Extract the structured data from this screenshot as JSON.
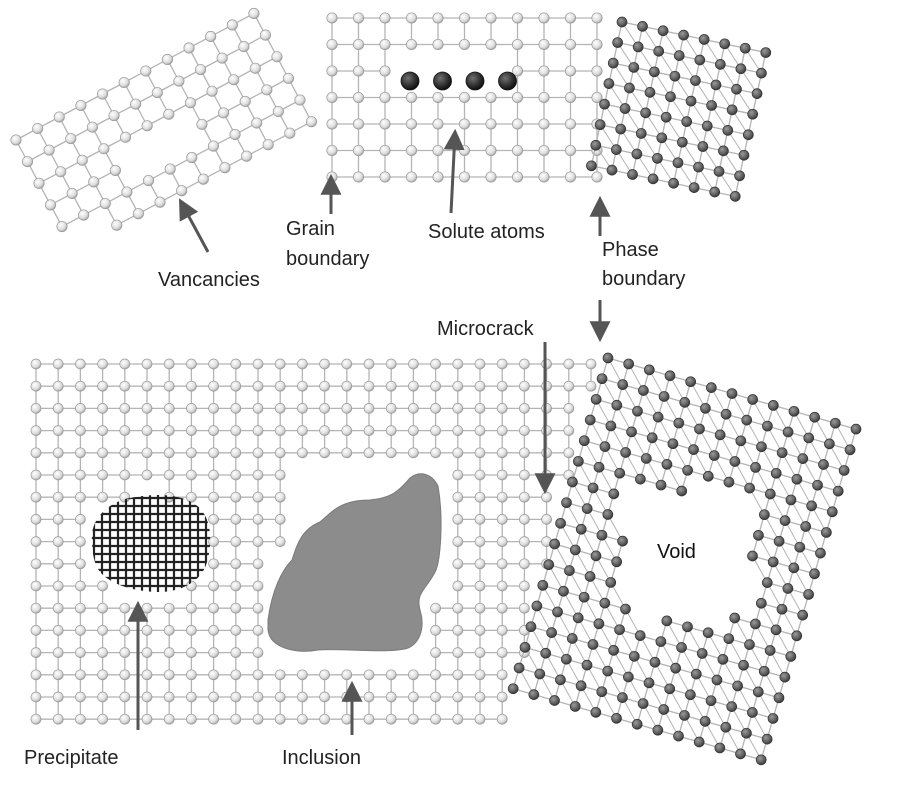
{
  "labels": {
    "vacancies": "Vancancies",
    "grain_line1": "Grain",
    "grain_line2": "boundary",
    "solute": "Solute atoms",
    "phase_line1": "Phase",
    "phase_line2": "boundary",
    "microcrack": "Microcrack",
    "void": "Void",
    "precipitate": "Precipitate",
    "inclusion": "Inclusion"
  },
  "colors": {
    "light_atom": "#e6e6e6",
    "dark_atom": "#6a6a6a",
    "solute_atom": "#2e2e2e",
    "bond": "#b4b4b4",
    "arrow": "#555555",
    "inclusion": "#8c8c8c",
    "precipitate": "#222222"
  },
  "counts": {
    "solute_atoms": 4
  }
}
